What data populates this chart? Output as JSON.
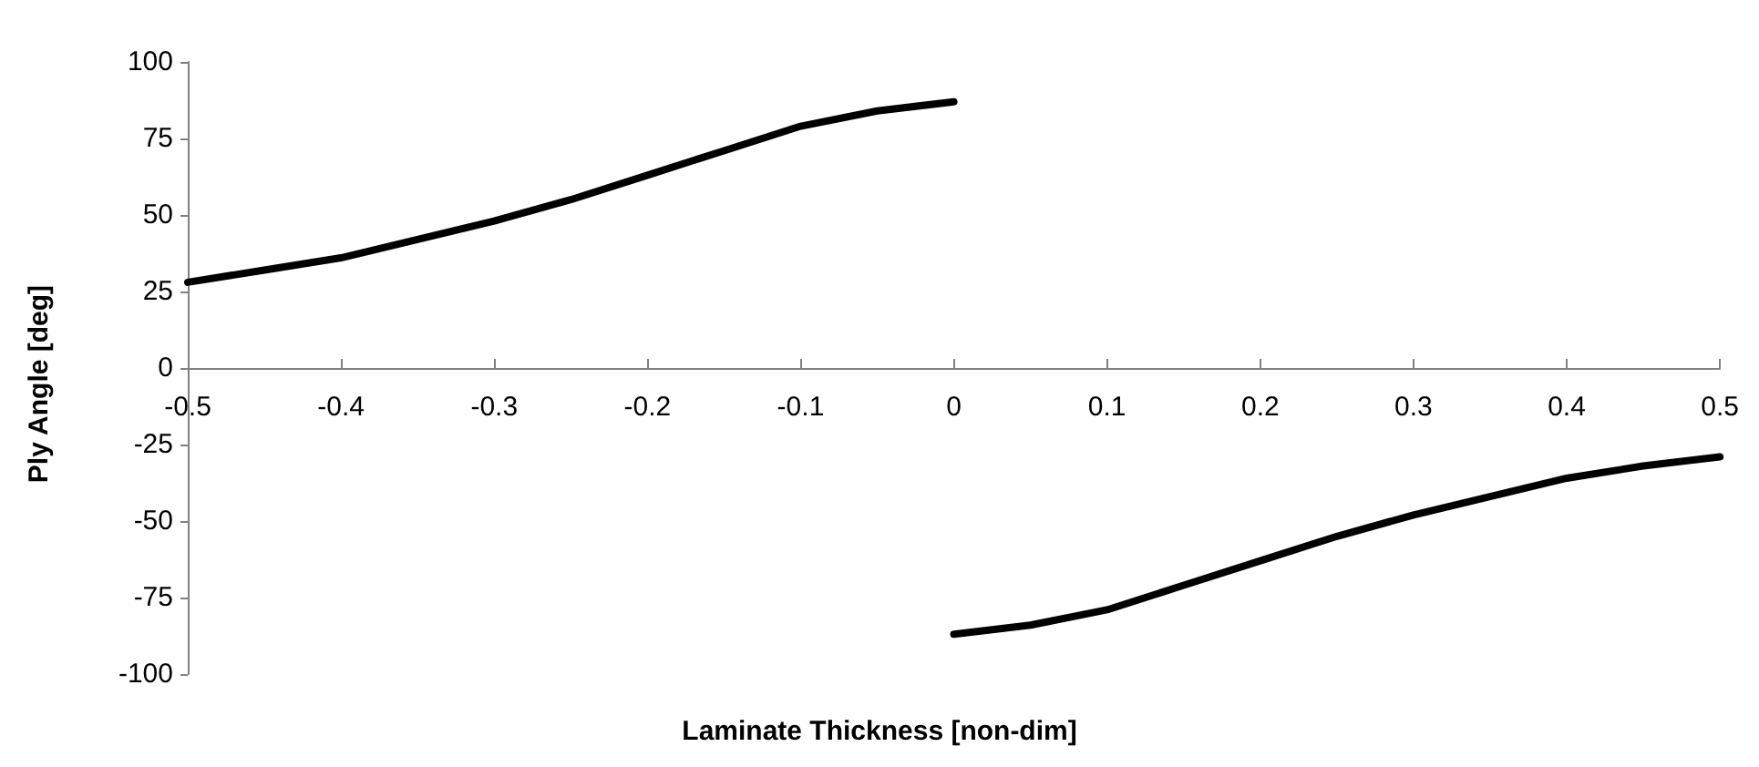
{
  "chart_data": {
    "type": "line",
    "xlabel": "Laminate Thickness [non-dim]",
    "ylabel": "Ply Angle [deg]",
    "xlim": [
      -0.5,
      0.5
    ],
    "xticks": [
      -0.5,
      -0.4,
      -0.3,
      -0.2,
      -0.1,
      0,
      0.1,
      0.2,
      0.3,
      0.4,
      0.5
    ],
    "ylim": [
      -100,
      100
    ],
    "yticks": [
      -100,
      -75,
      -50,
      -25,
      0,
      25,
      50,
      75,
      100
    ],
    "grid": false,
    "marker": "none",
    "line_style": "solid",
    "series": [
      {
        "color": "#000000",
        "x": [
          -0.5,
          -0.45,
          -0.4,
          -0.3,
          -0.25,
          -0.2,
          -0.15,
          -0.1,
          -0.05,
          0
        ],
        "values": [
          28,
          32,
          36,
          48,
          55,
          63,
          71,
          79,
          84,
          87
        ]
      },
      {
        "color": "#000000",
        "x": [
          0,
          0.05,
          0.1,
          0.15,
          0.2,
          0.25,
          0.3,
          0.4,
          0.45,
          0.5
        ],
        "values": [
          -87,
          -84,
          -79,
          -71,
          -63,
          -55,
          -48,
          -36,
          -32,
          -29
        ]
      }
    ]
  }
}
